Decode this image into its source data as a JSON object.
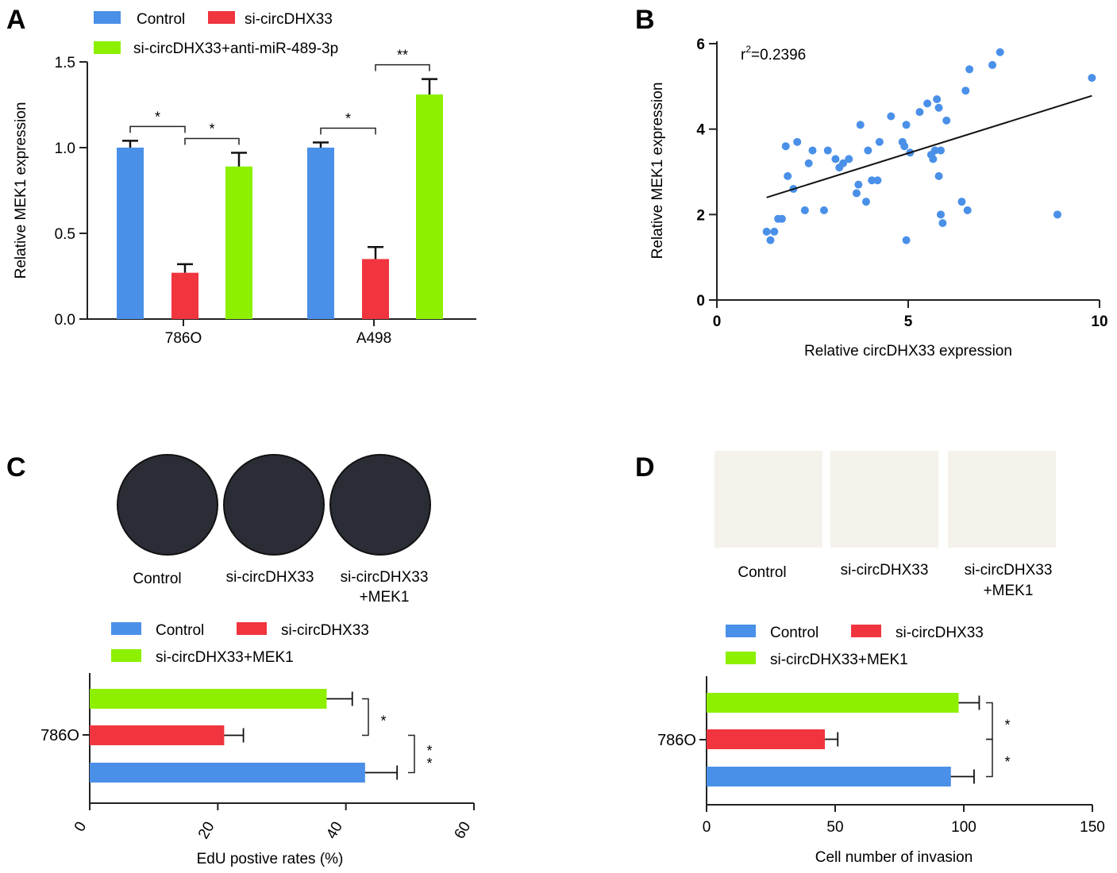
{
  "panels": {
    "A": {
      "letter": "A",
      "chart_data": {
        "type": "bar",
        "categories": [
          "786O",
          "A498"
        ],
        "series": [
          {
            "name": "Control",
            "color": "#4a90e8",
            "values": [
              1.0,
              1.0
            ],
            "errors": [
              0.04,
              0.03
            ]
          },
          {
            "name": "si-circDHX33",
            "color": "#f0353f",
            "values": [
              0.27,
              0.35
            ],
            "errors": [
              0.05,
              0.07
            ]
          },
          {
            "name": "si-circDHX33+anti-miR-489-3p",
            "color": "#8cf000",
            "values": [
              0.89,
              1.31
            ],
            "errors": [
              0.08,
              0.09
            ]
          }
        ],
        "ylabel": "Relative MEK1 expression",
        "xlabel": "",
        "ylim": [
          0,
          1.5
        ],
        "yticks": [
          "0.0",
          "0.5",
          "1.0",
          "1.5"
        ],
        "significance": [
          {
            "category": 0,
            "between": [
              0,
              1
            ],
            "label": "*"
          },
          {
            "category": 0,
            "between": [
              1,
              2
            ],
            "label": "*"
          },
          {
            "category": 1,
            "between": [
              0,
              1
            ],
            "label": "*"
          },
          {
            "category": 1,
            "between": [
              1,
              2
            ],
            "label": "**"
          }
        ]
      }
    },
    "B": {
      "letter": "B",
      "chart_data": {
        "type": "scatter",
        "xlabel": "Relative circDHX33 expression",
        "ylabel": "Relative MEK1 expression",
        "annotation_prefix": "r",
        "annotation_sup": "2",
        "annotation_value": "=0.2396",
        "xlim": [
          0,
          10
        ],
        "ylim": [
          0,
          6
        ],
        "xticks": [
          "0",
          "5",
          "10"
        ],
        "yticks": [
          "0",
          "2",
          "4",
          "6"
        ],
        "point_color": "#4a90e8",
        "fit_line": {
          "x": [
            1.3,
            9.8
          ],
          "y": [
            2.4,
            4.78
          ]
        },
        "points": [
          [
            1.3,
            1.6
          ],
          [
            1.4,
            1.4
          ],
          [
            1.5,
            1.6
          ],
          [
            1.6,
            1.9
          ],
          [
            1.7,
            1.9
          ],
          [
            1.8,
            3.6
          ],
          [
            1.85,
            2.9
          ],
          [
            2.0,
            2.6
          ],
          [
            2.1,
            3.7
          ],
          [
            2.3,
            2.1
          ],
          [
            2.4,
            3.2
          ],
          [
            2.5,
            3.5
          ],
          [
            2.8,
            2.1
          ],
          [
            2.9,
            3.5
          ],
          [
            3.1,
            3.3
          ],
          [
            3.2,
            3.1
          ],
          [
            3.3,
            3.2
          ],
          [
            3.45,
            3.3
          ],
          [
            3.65,
            2.5
          ],
          [
            3.7,
            2.7
          ],
          [
            3.75,
            4.1
          ],
          [
            3.9,
            2.3
          ],
          [
            3.95,
            3.5
          ],
          [
            4.05,
            2.8
          ],
          [
            4.2,
            2.8
          ],
          [
            4.25,
            3.7
          ],
          [
            4.55,
            4.3
          ],
          [
            4.85,
            3.7
          ],
          [
            4.9,
            3.6
          ],
          [
            4.95,
            4.1
          ],
          [
            4.95,
            1.4
          ],
          [
            5.05,
            3.45
          ],
          [
            5.3,
            4.4
          ],
          [
            5.5,
            4.6
          ],
          [
            5.6,
            3.4
          ],
          [
            5.65,
            3.3
          ],
          [
            5.7,
            3.5
          ],
          [
            5.75,
            4.7
          ],
          [
            5.8,
            4.5
          ],
          [
            5.8,
            2.9
          ],
          [
            5.85,
            2.0
          ],
          [
            5.85,
            3.5
          ],
          [
            5.9,
            1.8
          ],
          [
            6.0,
            4.2
          ],
          [
            6.4,
            2.3
          ],
          [
            6.5,
            4.9
          ],
          [
            6.6,
            5.4
          ],
          [
            6.55,
            2.1
          ],
          [
            7.2,
            5.5
          ],
          [
            7.4,
            5.8
          ],
          [
            8.9,
            2.0
          ],
          [
            9.8,
            5.2
          ]
        ]
      }
    },
    "C": {
      "letter": "C",
      "image_labels": [
        "Control",
        "si-circDHX33",
        "si-circDHX33",
        "+MEK1"
      ],
      "legend": [
        "Control",
        "si-circDHX33",
        "si-circDHX33+MEK1"
      ],
      "chart_data": {
        "type": "bar",
        "orientation": "horizontal",
        "categories": [
          "786O"
        ],
        "series": [
          {
            "name": "Control",
            "color": "#4a90e8",
            "values": [
              43
            ],
            "errors": [
              5
            ]
          },
          {
            "name": "si-circDHX33",
            "color": "#f0353f",
            "values": [
              21
            ],
            "errors": [
              3
            ]
          },
          {
            "name": "si-circDHX33+MEK1",
            "color": "#8cf000",
            "values": [
              37
            ],
            "errors": [
              4
            ]
          }
        ],
        "xlabel": "EdU postive rates (%)",
        "xlim": [
          0,
          60
        ],
        "xticks": [
          "0",
          "20",
          "40",
          "60"
        ],
        "significance": [
          {
            "between": [
              2,
              1
            ],
            "label": "*"
          },
          {
            "between": [
              1,
              0
            ],
            "label": "**"
          }
        ]
      }
    },
    "D": {
      "letter": "D",
      "image_labels": [
        "Control",
        "si-circDHX33",
        "si-circDHX33",
        "+MEK1"
      ],
      "legend": [
        "Control",
        "si-circDHX33",
        "si-circDHX33+MEK1"
      ],
      "chart_data": {
        "type": "bar",
        "orientation": "horizontal",
        "categories": [
          "786O"
        ],
        "series": [
          {
            "name": "Control",
            "color": "#4a90e8",
            "values": [
              95
            ],
            "errors": [
              9
            ]
          },
          {
            "name": "si-circDHX33",
            "color": "#f0353f",
            "values": [
              46
            ],
            "errors": [
              5
            ]
          },
          {
            "name": "si-circDHX33+MEK1",
            "color": "#8cf000",
            "values": [
              98
            ],
            "errors": [
              8
            ]
          }
        ],
        "xlabel": "Cell number of invasion",
        "xlim": [
          0,
          150
        ],
        "xticks": [
          "0",
          "50",
          "100",
          "150"
        ],
        "significance": [
          {
            "between": [
              2,
              1
            ],
            "label": "*"
          },
          {
            "between": [
              1,
              0
            ],
            "label": "*"
          }
        ]
      }
    }
  }
}
